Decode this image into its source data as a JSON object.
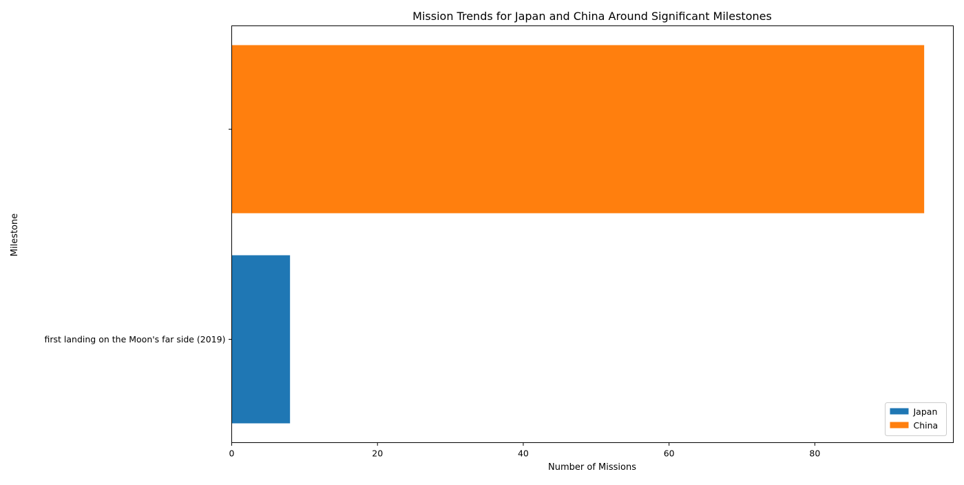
{
  "chart_data": {
    "type": "bar",
    "orientation": "horizontal",
    "title": "Mission Trends for Japan and China Around Significant Milestones",
    "xlabel": "Number of Missions",
    "ylabel": "Milestone",
    "categories": [
      "first landing on the Moon's far side (2019)",
      ""
    ],
    "series": [
      {
        "name": "Japan",
        "color": "#1f77b4",
        "values": [
          8,
          null
        ]
      },
      {
        "name": "China",
        "color": "#ff7f0e",
        "values": [
          null,
          95
        ]
      }
    ],
    "xlim": [
      0,
      99
    ],
    "xticks": [
      0,
      20,
      40,
      60,
      80
    ],
    "grid": false,
    "legend_position": "lower right"
  }
}
